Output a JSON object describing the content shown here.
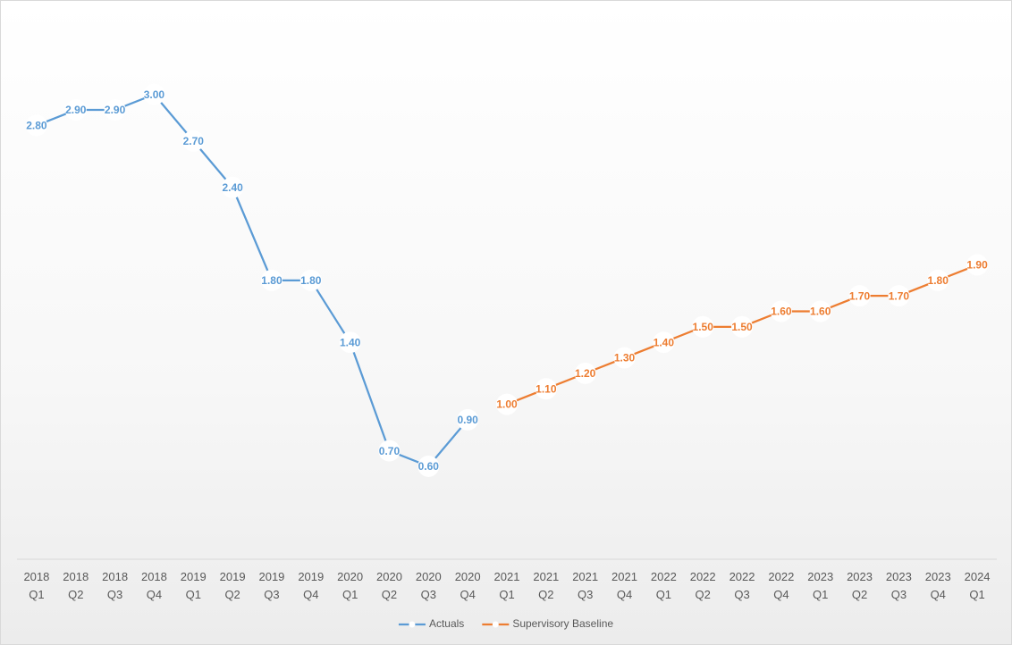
{
  "chart_data": {
    "type": "line",
    "categories": [
      "2018 Q1",
      "2018 Q2",
      "2018 Q3",
      "2018 Q4",
      "2019 Q1",
      "2019 Q2",
      "2019 Q3",
      "2019 Q4",
      "2020 Q1",
      "2020 Q2",
      "2020 Q3",
      "2020 Q4",
      "2021 Q1",
      "2021 Q2",
      "2021 Q3",
      "2021 Q4",
      "2022 Q1",
      "2022 Q2",
      "2022 Q3",
      "2022 Q4",
      "2023 Q1",
      "2023 Q2",
      "2023 Q3",
      "2023 Q4",
      "2024 Q1"
    ],
    "series": [
      {
        "name": "Actuals",
        "color": "#5b9bd5",
        "values": [
          2.8,
          2.9,
          2.9,
          3.0,
          2.7,
          2.4,
          1.8,
          1.8,
          1.4,
          0.7,
          0.6,
          0.9,
          null,
          null,
          null,
          null,
          null,
          null,
          null,
          null,
          null,
          null,
          null,
          null,
          null
        ],
        "value_labels": [
          "2.80",
          "2.90",
          "2.90",
          "3.00",
          "2.70",
          "2.40",
          "1.80",
          "1.80",
          "1.40",
          "0.70",
          "0.60",
          "0.90",
          null,
          null,
          null,
          null,
          null,
          null,
          null,
          null,
          null,
          null,
          null,
          null,
          null
        ]
      },
      {
        "name": "Supervisory Baseline",
        "color": "#ed7d31",
        "values": [
          null,
          null,
          null,
          null,
          null,
          null,
          null,
          null,
          null,
          null,
          null,
          null,
          1.0,
          1.1,
          1.2,
          1.3,
          1.4,
          1.5,
          1.5,
          1.6,
          1.6,
          1.7,
          1.7,
          1.8,
          1.9
        ],
        "value_labels": [
          null,
          null,
          null,
          null,
          null,
          null,
          null,
          null,
          null,
          null,
          null,
          null,
          "1.00",
          "1.10",
          "1.20",
          "1.30",
          "1.40",
          "1.50",
          "1.50",
          "1.60",
          "1.60",
          "1.70",
          "1.70",
          "1.80",
          "1.90"
        ]
      }
    ],
    "ylim": [
      0,
      3.5
    ],
    "legend": "bottom"
  }
}
